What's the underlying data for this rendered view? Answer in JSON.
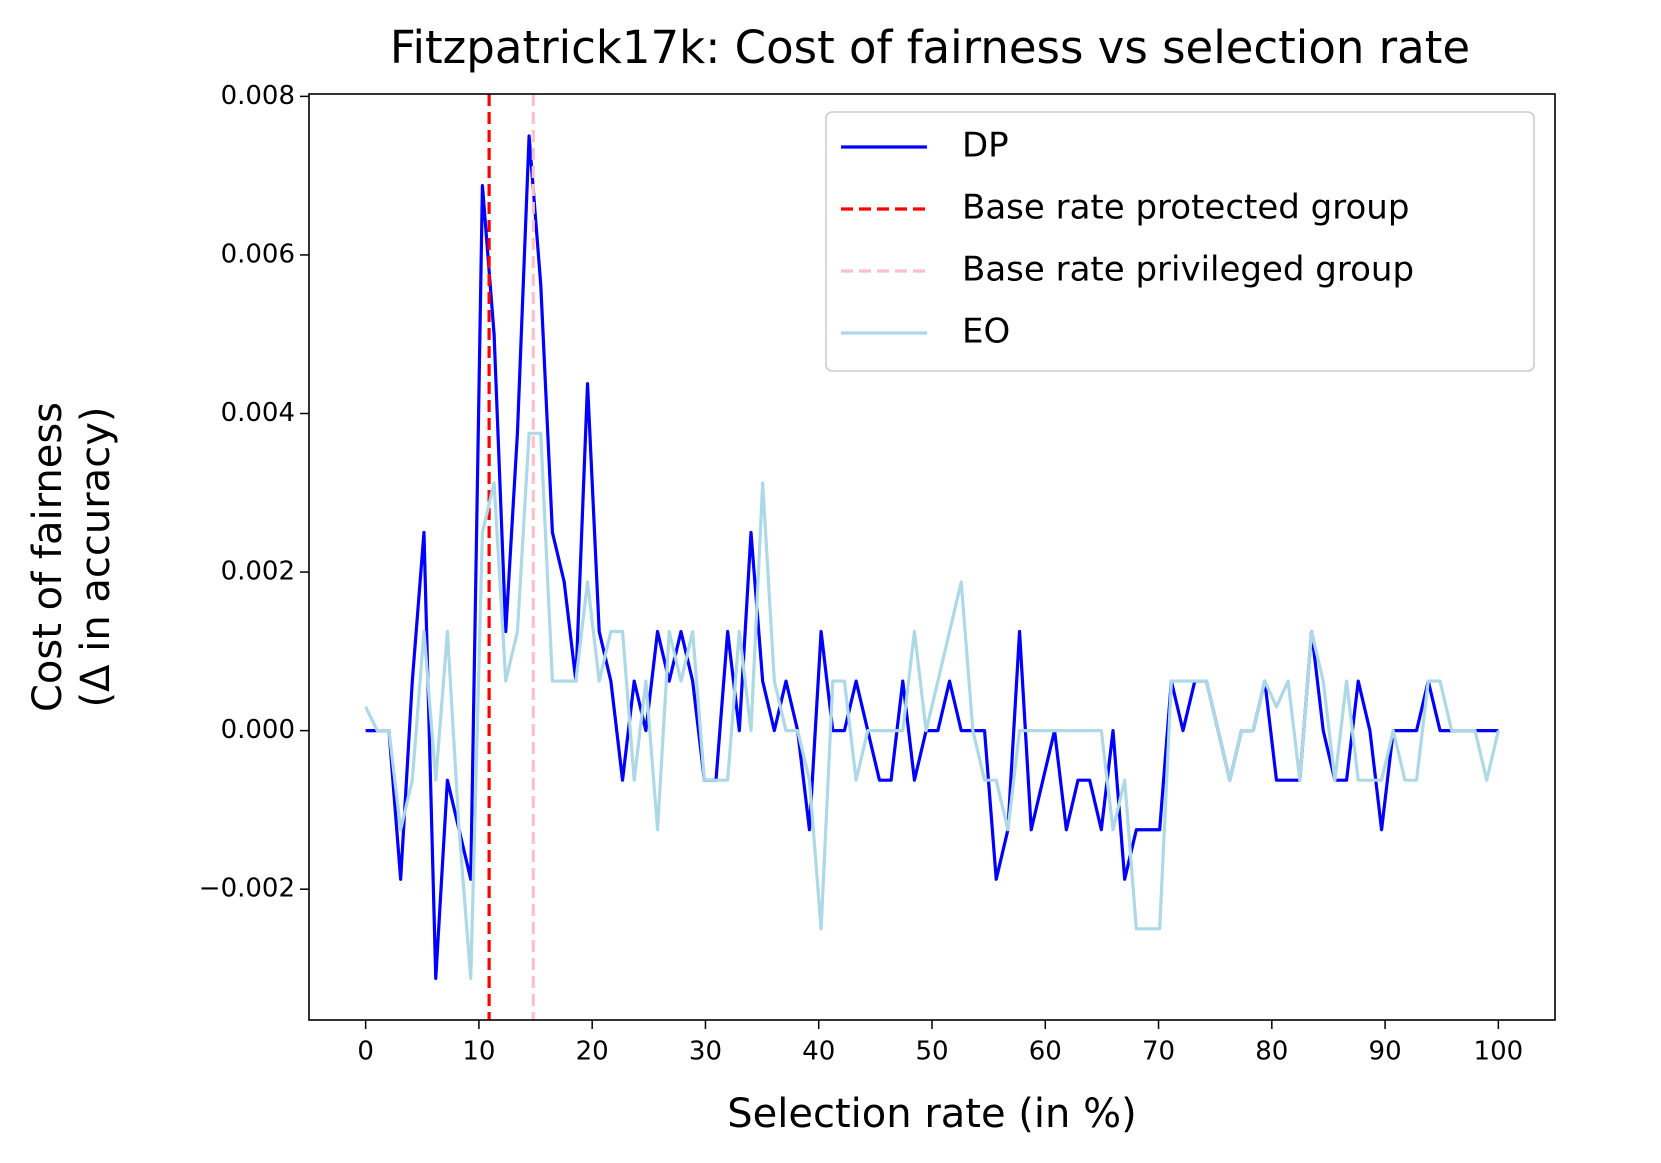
{
  "chart_data": {
    "type": "line",
    "title": "Fitzpatrick17k: Cost of fairness vs selection rate",
    "xlabel": "Selection rate (in %)",
    "ylabel": [
      "Cost of fairness",
      "(Δ in accuracy)"
    ],
    "xlim": [
      -5,
      105
    ],
    "ylim": [
      -0.00365,
      0.00803
    ],
    "xticks": [
      0,
      10,
      20,
      30,
      40,
      50,
      60,
      70,
      80,
      90,
      100
    ],
    "yticks": [
      {
        "value": -0.002,
        "label": "−0.002"
      },
      {
        "value": 0,
        "label": "0.000"
      },
      0.002,
      0.004,
      0.006,
      0.008
    ],
    "legend": "upper right",
    "x": [
      0,
      1.03,
      2.06,
      3.09,
      4.12,
      5.15,
      6.19,
      7.22,
      8.25,
      9.28,
      10.31,
      11.34,
      12.37,
      13.4,
      14.43,
      15.46,
      16.49,
      17.53,
      18.56,
      19.59,
      20.62,
      21.65,
      22.68,
      23.71,
      24.74,
      25.77,
      26.8,
      27.84,
      28.87,
      29.9,
      30.93,
      31.96,
      32.99,
      34.02,
      35.05,
      36.08,
      37.11,
      38.14,
      39.18,
      40.21,
      41.24,
      42.27,
      43.3,
      44.33,
      45.36,
      46.39,
      47.42,
      48.45,
      49.48,
      50.52,
      51.55,
      52.58,
      53.61,
      54.64,
      55.67,
      56.7,
      57.73,
      58.76,
      59.79,
      60.82,
      61.86,
      62.89,
      63.92,
      64.95,
      65.98,
      67.01,
      68.04,
      69.07,
      70.1,
      71.13,
      72.16,
      73.2,
      74.23,
      75.26,
      76.29,
      77.32,
      78.35,
      79.38,
      80.41,
      81.44,
      82.47,
      83.51,
      84.54,
      85.57,
      86.6,
      87.63,
      88.66,
      89.69,
      90.72,
      91.75,
      92.78,
      93.81,
      94.85,
      95.88,
      96.91,
      97.94,
      98.97,
      100
    ],
    "series": [
      {
        "name": "DP",
        "color": "#0000ff",
        "values": [
          0,
          0,
          0,
          -0.001875,
          0.000625,
          0.0025,
          -0.003125,
          -0.000625,
          -0.00125,
          -0.001875,
          0.006875,
          0.005,
          0.00125,
          0.00375,
          0.0075,
          0.005625,
          0.0025,
          0.001875,
          0.000625,
          0.004375,
          0.00125,
          0.000625,
          -0.000625,
          0.000625,
          0,
          0.00125,
          0.000625,
          0.00125,
          0.000625,
          -0.000625,
          -0.000625,
          0.00125,
          0,
          0.0025,
          0.000625,
          0,
          0.000625,
          0,
          -0.00125,
          0.00125,
          0,
          0,
          0.000625,
          0,
          -0.000625,
          -0.000625,
          0.000625,
          -0.000625,
          0,
          0,
          0.000625,
          0,
          0,
          0,
          -0.001875,
          -0.00125,
          0.00125,
          -0.00125,
          -0.000625,
          0,
          -0.00125,
          -0.000625,
          -0.000625,
          -0.00125,
          0,
          -0.001875,
          -0.00125,
          -0.00125,
          -0.00125,
          0.000625,
          0,
          0.000625,
          0.000625,
          0,
          -0.000625,
          0,
          0,
          0.000625,
          -0.000625,
          -0.000625,
          -0.000625,
          0.00125,
          0,
          -0.000625,
          -0.000625,
          0.000625,
          0,
          -0.00125,
          0,
          0,
          0,
          0.000625,
          0,
          0,
          0,
          0,
          0,
          0
        ]
      },
      {
        "name": "Base rate protected group",
        "color": "#ff0000",
        "xvalue": 10.9
      },
      {
        "name": "Base rate privileged group",
        "color": "#ffc0cb",
        "xvalue": 14.8
      },
      {
        "name": "EO",
        "color": "#add8e6",
        "values": [
          0.0003,
          0,
          0,
          -0.00125,
          -0.000625,
          0.00125,
          -0.000625,
          0.00125,
          -0.00125,
          -0.003125,
          0.0025,
          0.003125,
          0.000625,
          0.00125,
          0.00375,
          0.00375,
          0.000625,
          0.000625,
          0.000625,
          0.001875,
          0.000625,
          0.00125,
          0.00125,
          -0.000625,
          0.000625,
          -0.00125,
          0.00125,
          0.000625,
          0.00125,
          -0.000625,
          -0.000625,
          -0.000625,
          0.00125,
          0,
          0.003125,
          0.000625,
          0,
          0,
          -0.000625,
          -0.0025,
          0.000625,
          0.000625,
          -0.000625,
          0,
          0,
          0,
          0,
          0.00125,
          0,
          0.000625,
          0.00125,
          0.001875,
          0,
          -0.000625,
          -0.000625,
          -0.00125,
          0,
          0,
          0,
          0,
          0,
          0,
          0,
          0,
          -0.00125,
          -0.000625,
          -0.0025,
          -0.0025,
          -0.0025,
          0.000625,
          0.000625,
          0.000625,
          0.000625,
          0,
          -0.000625,
          0,
          0,
          0.000625,
          0.0003,
          0.000625,
          -0.000625,
          0.00125,
          0.000625,
          -0.000625,
          0.000625,
          -0.000625,
          -0.000625,
          -0.000625,
          0,
          -0.000625,
          -0.000625,
          0.000625,
          0.000625,
          0,
          0,
          0,
          -0.000625,
          0
        ]
      }
    ]
  }
}
